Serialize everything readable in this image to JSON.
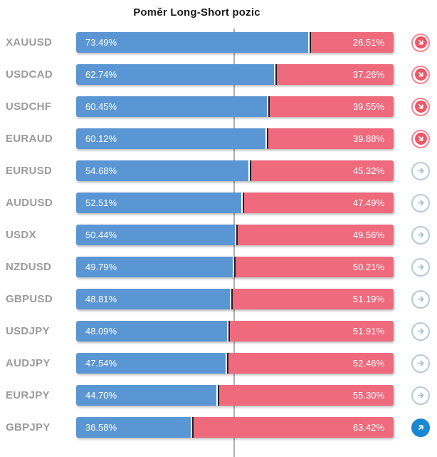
{
  "title": "Poměr Long-Short pozic",
  "colors": {
    "long_bar": "#5b96d4",
    "short_bar": "#ef6a7d",
    "junction_divider": "#221e26",
    "center_line": "#aeaeae",
    "pair_label": "#9b9b9b",
    "signal_down": "#f15568",
    "signal_neutral": "#b6c9d8",
    "signal_up": "#1987d2"
  },
  "rows": [
    {
      "symbol": "XAUUSD",
      "long": "73.49%",
      "short": "26.51%",
      "long_pct": 73.49,
      "signal": "down"
    },
    {
      "symbol": "USDCAD",
      "long": "62.74%",
      "short": "37.26%",
      "long_pct": 62.74,
      "signal": "down"
    },
    {
      "symbol": "USDCHF",
      "long": "60.45%",
      "short": "39.55%",
      "long_pct": 60.45,
      "signal": "down"
    },
    {
      "symbol": "EURAUD",
      "long": "60.12%",
      "short": "39.88%",
      "long_pct": 60.12,
      "signal": "down"
    },
    {
      "symbol": "EURUSD",
      "long": "54.68%",
      "short": "45.32%",
      "long_pct": 54.68,
      "signal": "neutral"
    },
    {
      "symbol": "AUDUSD",
      "long": "52.51%",
      "short": "47.49%",
      "long_pct": 52.51,
      "signal": "neutral"
    },
    {
      "symbol": "USDX",
      "long": "50.44%",
      "short": "49.56%",
      "long_pct": 50.44,
      "signal": "neutral"
    },
    {
      "symbol": "NZDUSD",
      "long": "49.79%",
      "short": "50.21%",
      "long_pct": 49.79,
      "signal": "neutral"
    },
    {
      "symbol": "GBPUSD",
      "long": "48.81%",
      "short": "51.19%",
      "long_pct": 48.81,
      "signal": "neutral"
    },
    {
      "symbol": "USDJPY",
      "long": "48.09%",
      "short": "51.91%",
      "long_pct": 48.09,
      "signal": "neutral"
    },
    {
      "symbol": "AUDJPY",
      "long": "47.54%",
      "short": "52.46%",
      "long_pct": 47.54,
      "signal": "neutral"
    },
    {
      "symbol": "EURJPY",
      "long": "44.70%",
      "short": "55.30%",
      "long_pct": 44.7,
      "signal": "neutral"
    },
    {
      "symbol": "GBPJPY",
      "long": "36.58%",
      "short": "63.42%",
      "long_pct": 36.58,
      "signal": "up"
    }
  ],
  "chart_data": {
    "type": "bar",
    "orientation": "horizontal-stacked",
    "title": "Poměr Long-Short pozic",
    "categories": [
      "XAUUSD",
      "USDCAD",
      "USDCHF",
      "EURAUD",
      "EURUSD",
      "AUDUSD",
      "USDX",
      "NZDUSD",
      "GBPUSD",
      "USDJPY",
      "AUDJPY",
      "EURJPY",
      "GBPJPY"
    ],
    "series": [
      {
        "name": "Long %",
        "color": "#5b96d4",
        "values": [
          73.49,
          62.74,
          60.45,
          60.12,
          54.68,
          52.51,
          50.44,
          49.79,
          48.81,
          48.09,
          47.54,
          44.7,
          36.58
        ]
      },
      {
        "name": "Short %",
        "color": "#ef6a7d",
        "values": [
          26.51,
          37.26,
          39.55,
          39.88,
          45.32,
          47.49,
          49.56,
          50.21,
          51.19,
          51.91,
          52.46,
          55.3,
          63.42
        ]
      }
    ],
    "xlim": [
      0,
      100
    ],
    "reference_line_x": 50,
    "grid": false,
    "legend": "none",
    "annotations": {
      "signal_icons": [
        "down",
        "down",
        "down",
        "down",
        "neutral",
        "neutral",
        "neutral",
        "neutral",
        "neutral",
        "neutral",
        "neutral",
        "neutral",
        "up"
      ]
    }
  }
}
